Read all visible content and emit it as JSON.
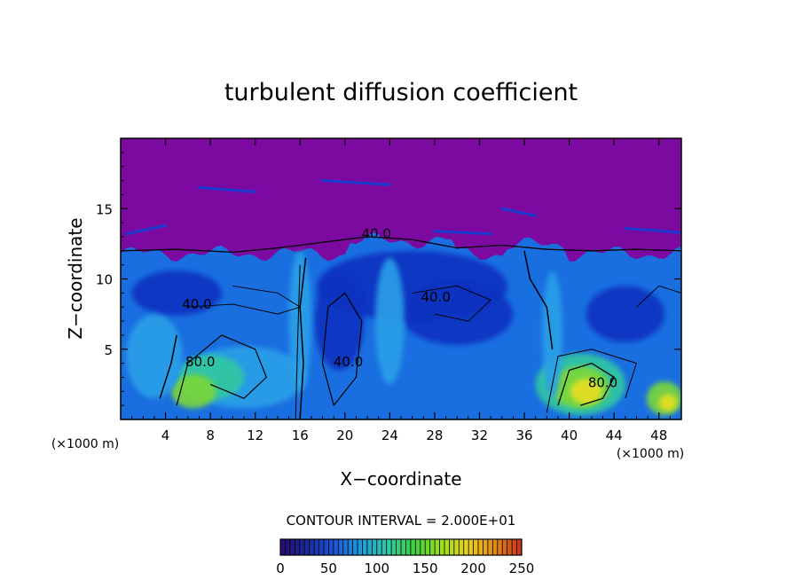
{
  "chart_data": {
    "type": "heatmap",
    "title": "turbulent diffusion coefficient",
    "xlabel": "X−coordinate",
    "ylabel": "Z−coordinate",
    "x_unit_left": "(×1000 m)",
    "x_unit_right": "(×1000 m)",
    "xlim": [
      0,
      50
    ],
    "ylim": [
      0,
      20
    ],
    "x_ticks": [
      4,
      8,
      12,
      16,
      20,
      24,
      28,
      32,
      36,
      40,
      44,
      48
    ],
    "y_ticks": [
      5,
      10,
      15
    ],
    "contour_labels": [
      {
        "text": "40.0",
        "x": 22.8,
        "y": 12.9
      },
      {
        "text": "40.0",
        "x": 6.8,
        "y": 7.9
      },
      {
        "text": "40.0",
        "x": 28.1,
        "y": 8.4
      },
      {
        "text": "40.0",
        "x": 20.3,
        "y": 3.8
      },
      {
        "text": "80.0",
        "x": 7.1,
        "y": 3.8
      },
      {
        "text": "80.0",
        "x": 43.0,
        "y": 2.3
      }
    ],
    "contour_interval_text": "CONTOUR INTERVAL = 2.000E+01",
    "colorbar": {
      "min": 0,
      "max": 250,
      "ticks": [
        0,
        50,
        100,
        150,
        200,
        250
      ],
      "colors": [
        "#2a0a70",
        "#1a2a9a",
        "#1c55d8",
        "#1f9ad8",
        "#30c8a8",
        "#3fd040",
        "#9adf20",
        "#e8d020",
        "#e08a18",
        "#c83018"
      ]
    },
    "field_colors": {
      "upper": "#7d0aa0",
      "low": "#1030c0",
      "mid": "#1a6fe0",
      "high": "#2aa0e8",
      "peak": "#30c8a0",
      "hot": "#7cd838",
      "max": "#e8e020"
    }
  }
}
